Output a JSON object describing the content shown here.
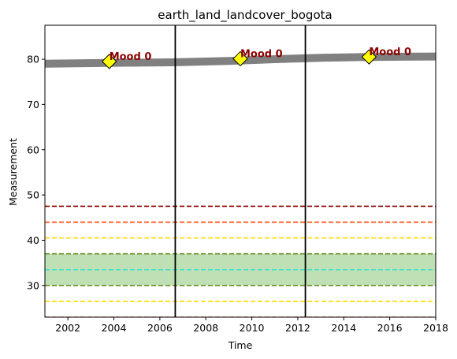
{
  "chart_data": {
    "type": "line",
    "title": "earth_land_landcover_bogota",
    "xlabel": "Time",
    "ylabel": "Measurement",
    "xlim": [
      2001,
      2018
    ],
    "ylim": [
      23,
      87.5
    ],
    "x_ticks": [
      2002,
      2004,
      2006,
      2008,
      2010,
      2012,
      2014,
      2016,
      2018
    ],
    "y_ticks": [
      30,
      40,
      50,
      60,
      70,
      80
    ],
    "series": [
      {
        "color": "#808080",
        "points": [
          {
            "x": 2001.0,
            "y": 79.0
          },
          {
            "x": 2004.0,
            "y": 79.2
          },
          {
            "x": 2006.5,
            "y": 79.3
          },
          {
            "x": 2009.0,
            "y": 79.6
          },
          {
            "x": 2011.0,
            "y": 80.0
          },
          {
            "x": 2013.0,
            "y": 80.3
          },
          {
            "x": 2015.0,
            "y": 80.5
          },
          {
            "x": 2018.0,
            "y": 80.6
          }
        ]
      }
    ],
    "green_band": {
      "y0": 30,
      "y1": 37,
      "color": "#bfe0b4"
    },
    "hlines": [
      {
        "y": 47.5,
        "color": "#8b0000"
      },
      {
        "y": 44.0,
        "color": "#ff4500"
      },
      {
        "y": 40.5,
        "color": "#ffd700"
      },
      {
        "y": 37.0,
        "color": "#6b8e23"
      },
      {
        "y": 33.5,
        "color": "#40e0d0"
      },
      {
        "y": 30.0,
        "color": "#6b8e23"
      },
      {
        "y": 26.5,
        "color": "#ffd700"
      },
      {
        "y": 23.0,
        "color": "#ff4500"
      }
    ],
    "vlines": [
      {
        "x": 2006.67,
        "color": "#000000"
      },
      {
        "x": 2012.33,
        "color": "#000000"
      }
    ],
    "annotations": [
      {
        "x": 2003.8,
        "y": 79.5,
        "label": "Mood 0",
        "marker_color": "#ffff00",
        "text_color": "#8b0000"
      },
      {
        "x": 2009.5,
        "y": 80.1,
        "label": "Mood 0",
        "marker_color": "#ffff00",
        "text_color": "#8b0000"
      },
      {
        "x": 2015.1,
        "y": 80.5,
        "label": "Mood 0",
        "marker_color": "#ffff00",
        "text_color": "#8b0000"
      }
    ]
  }
}
